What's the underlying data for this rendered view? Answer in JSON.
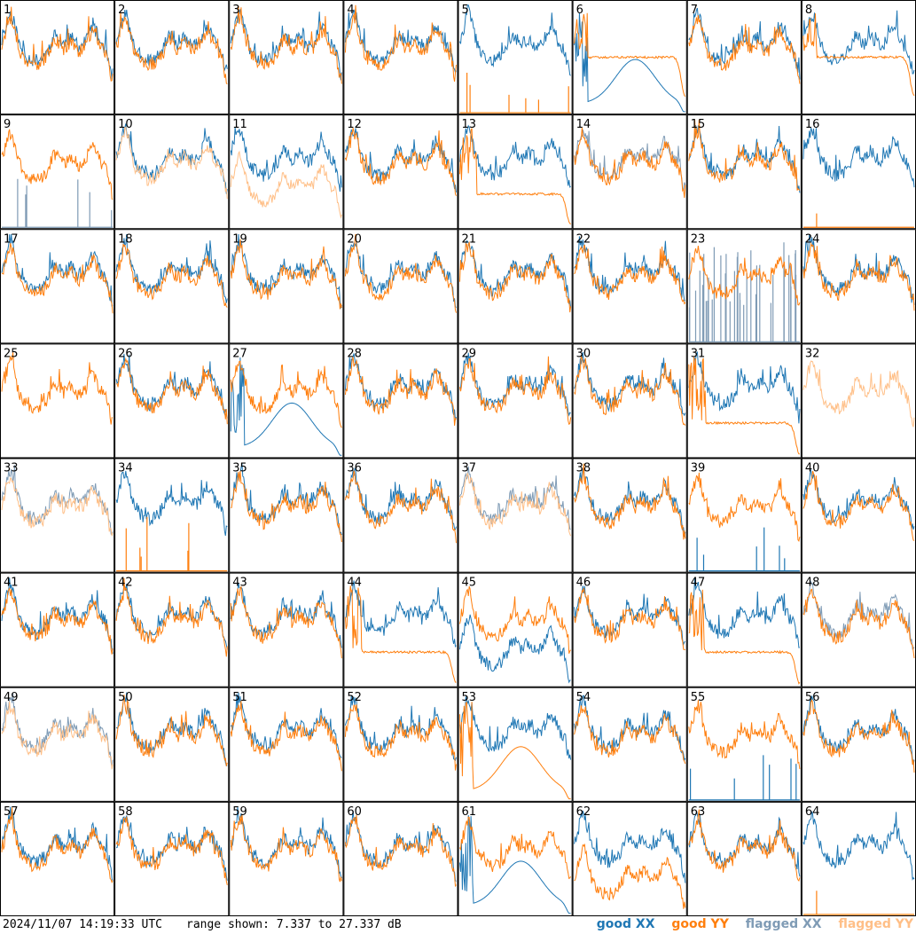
{
  "chart_data": {
    "type": "line",
    "layout": "small-multiples",
    "panel_count": 64,
    "panel_labels": [
      "1",
      "2",
      "3",
      "4",
      "5",
      "6",
      "7",
      "8",
      "9",
      "10",
      "11",
      "12",
      "13",
      "14",
      "15",
      "16",
      "17",
      "18",
      "19",
      "20",
      "21",
      "22",
      "23",
      "24",
      "25",
      "26",
      "27",
      "28",
      "29",
      "30",
      "31",
      "32",
      "33",
      "34",
      "35",
      "36",
      "37",
      "38",
      "39",
      "40",
      "41",
      "42",
      "43",
      "44",
      "45",
      "46",
      "47",
      "48",
      "49",
      "50",
      "51",
      "52",
      "53",
      "54",
      "55",
      "56",
      "57",
      "58",
      "59",
      "60",
      "61",
      "62",
      "63",
      "64"
    ],
    "y_unit": "dB",
    "ylim": [
      7.337,
      27.337
    ],
    "colors": {
      "good_xx": "#1f77b4",
      "good_yy": "#ff7f0e",
      "flagged_xx": "#7f9bb5",
      "flagged_yy": "#ffbf87"
    },
    "legend": [
      "good XX",
      "good YY",
      "flagged XX",
      "flagged YY"
    ],
    "panel_styles": {
      "5": {
        "yy": "spikes"
      },
      "6": {
        "yy": "flat-high",
        "xx": "drop-bump"
      },
      "8": {
        "yy": "flat-high"
      },
      "9": {
        "xx": "flagged-spikes"
      },
      "10": {
        "yy": "flagged"
      },
      "11": {
        "yy": "flagged-low"
      },
      "13": {
        "yy": "flat-low"
      },
      "14": {
        "xx": "flagged"
      },
      "16": {
        "yy": "single-spike"
      },
      "23": {
        "xx": "flagged-noise"
      },
      "25": {
        "xx": "hidden"
      },
      "27": {
        "xx": "drop-bump"
      },
      "31": {
        "yy": "flat-low"
      },
      "32": {
        "yy": "flagged",
        "xx": "hidden"
      },
      "33": {
        "xx": "flagged",
        "yy": "flagged"
      },
      "34": {
        "yy": "spikes"
      },
      "37": {
        "xx": "flagged",
        "yy": "flagged"
      },
      "39": {
        "xx": "spikes"
      },
      "44": {
        "yy": "flat-low"
      },
      "45": {
        "xx": "low"
      },
      "47": {
        "yy": "flat-low"
      },
      "48": {
        "xx": "flagged"
      },
      "49": {
        "xx": "flagged",
        "yy": "flagged"
      },
      "53": {
        "yy": "drop-bump"
      },
      "55": {
        "xx": "spikes"
      },
      "61": {
        "xx": "drop-bump"
      },
      "62": {
        "yy": "low"
      },
      "64": {
        "yy": "single-spike"
      }
    }
  },
  "footer": {
    "timestamp": "2024/11/07 14:19:33 UTC",
    "range_text": "range shown: 7.337 to 27.337 dB"
  },
  "legend": {
    "good_xx": "good XX",
    "good_yy": "good YY",
    "flagged_xx": "flagged XX",
    "flagged_yy": "flagged YY"
  }
}
